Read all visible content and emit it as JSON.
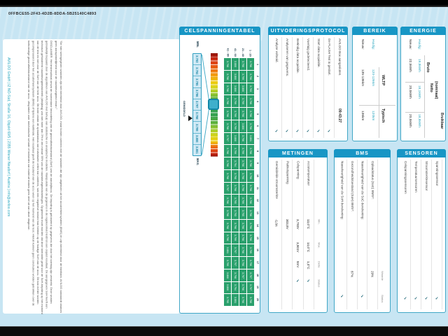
{
  "page": {
    "report_id": "0FFBCE55-2F43-4D2B-8DDA-5B25140C4893",
    "company_line": "AVILOO GmbH | IZ NÖ-Süd, Straße 16, Objekt 69/5 | 2355 Wiener Neudorf | Austria | info@aviloo.com",
    "bms_quote": "\"De hier weergegeven waarden zijn niet berekend door AVILOO, maar komen overeen met de waarden die zijn uitgelezen uit het accubeheersysteem (BMS) en zijn berekend door de fabrikant. AVILOO aanvaardt daarom geen aansprakelijkheid voor de nauwkeurigheid ervan.\"",
    "disclaimer": "DISCLAIMER: Het testresultaat omvat de momentane beoordeling van de gezondheidstoestand (SoH) van de aandrijfaccu. De bepaling is gebaseerd op gegevens die door het voertuig zijn verstrekt. Deze worden gebruikelijk bepaald door de algoritmen van AVILOO met behulp van statistische en analytische modellen. Manipulatie van de gegevens in de regeleenheid leidt tot een onjuist resultaat. De aangegeven SoH heeft een technisch gefundeerd nauwkeurigheidsbereik (afwijking) van niet meer dan 3% in ten minste 95% van de nauwkeurigheidsmetingen. Opgemerkt moet worden dat deze tolerantie geldt voor de SoH-bepaling op het moment van de test en niet voor de SoH van de hele accu. Dit komt omdat de oplaadstatus van individuele cellen kan variëren, wat een negatieve invloed kan hebben op de huidige SoH van de accu. Dit kan echter worden gecompenseerd door het accubeheersysteem (BMS) of tijdens een kalibratie. Het resultaat geeft de toestand van de accu weer op het moment van de test. Hieruit kunnen geen conclusies worden getrokken over de toekomstige gezondheidstoestand van de accu. Uitspraken over mechanische schade of invloeden van buitenaf maken geen deel uit van deze diagnose."
  },
  "colors": {
    "page_bg": "#c7e5f3",
    "header_bar_blue": "#1896c5",
    "panel_border_teal": "#41a7c6",
    "cell_green": "#2aa06c",
    "accent_teal": "#2ba7c0",
    "check_dark_teal": "#0d5c6e"
  },
  "cell_table": {
    "title": "CELSPANNINGENTABEL",
    "min_label": "MIN.",
    "max_label": "MAX.",
    "avg_label": "GEMIDDELD",
    "scale_values": [
      "3.793",
      "3.794",
      "3.795",
      "3.796",
      "3.797",
      "3.798",
      "3.799",
      "3.800",
      "3.801"
    ],
    "group_headers": [
      "61 - 80",
      "41 - 60",
      "21 - 40",
      "1 - 20"
    ],
    "row_numbers": [
      "1",
      "2",
      "3",
      "4",
      "5",
      "6",
      "7",
      "8",
      "9",
      "10",
      "11",
      "12",
      "13",
      "14",
      "15",
      "16",
      "17",
      "18",
      "19",
      "20"
    ],
    "rows": [
      [
        "3.796",
        "3.800",
        "3.796",
        "3.796"
      ],
      [
        "3.796",
        "3.800",
        "3.799",
        "3.796"
      ],
      [
        "3.796",
        "3.800",
        "3.800",
        "3.793"
      ],
      [
        "3.796",
        "3.799",
        "3.799",
        "3.796"
      ],
      [
        "3.796",
        "3.799",
        "3.796",
        "3.796"
      ],
      [
        "3.796",
        "3.799",
        "3.800",
        "3.796"
      ],
      [
        "3.797",
        "3.800",
        "3.796",
        "3.801"
      ],
      [
        "3.796",
        "3.799",
        "3.799",
        "3.798"
      ],
      [
        "3.796",
        "3.794",
        "3.796",
        "3.796"
      ],
      [
        "3.796",
        "3.798",
        "3.796",
        "3.796"
      ],
      [
        "3.797",
        "3.796",
        "3.796",
        "3.796"
      ],
      [
        "3.796",
        "3.795",
        "3.799",
        "3.796"
      ],
      [
        "3.796",
        "3.793",
        "3.795",
        "3.796"
      ],
      [
        "3.798",
        "3.796",
        "3.796",
        "3.796"
      ],
      [
        "3.796",
        "3.799",
        "3.796",
        "3.796"
      ],
      [
        "3.801",
        "3.797",
        "3.796",
        "3.799"
      ],
      [
        "3.799",
        "3.797",
        "3.796",
        "3.796"
      ],
      [
        "3.800",
        "3.798",
        "3.797",
        "3.797"
      ],
      [
        "3.800",
        "3.794",
        "3.796",
        "3.797"
      ],
      [
        "3.795",
        "3.801",
        "3.796",
        "3.796"
      ]
    ]
  },
  "protocol": {
    "title": "UITVOERINGSPROTOCOL",
    "steps": [
      {
        "label": "AVILOO Box aangesloten.",
        "result": "09:43:27"
      },
      {
        "label": "De FLASH Test is gestart.",
        "result": "✓"
      },
      {
        "label": "Start data acquisitie.",
        "result": "✓"
      },
      {
        "label": "Voertuig gedetecteerd.",
        "result": "✓"
      },
      {
        "label": "Beëindig data acquisitie.",
        "result": "✓"
      },
      {
        "label": "Analyseren van gegevens.",
        "result": "✓"
      },
      {
        "label": "Analyse voltooid.",
        "result": "✓"
      }
    ]
  },
  "range": {
    "title": "BEREIK",
    "columns": [
      "WLTP",
      "Typisch"
    ],
    "rows": [
      {
        "label": "Huidig:",
        "wltp": "120-126km",
        "typical": "120km"
      },
      {
        "label": "Nieuw:",
        "wltp": "135-136km",
        "typical": "136km"
      }
    ]
  },
  "energy": {
    "title": "ENERGIE",
    "columns": [
      "Bruto",
      "Netto (nominaal)",
      "Bruikbaar"
    ],
    "netto_l1": "Netto",
    "netto_l2": "(nominaal)",
    "rows": [
      {
        "label": "Huidig:",
        "bruto": "19,8kWh",
        "netto": "18,1kWh",
        "bruikbaar": "18,8kWh"
      },
      {
        "label": "Nieuw:",
        "bruto": "22,5kWh",
        "netto": "20,5kWh",
        "bruikbaar": "20,5kWh"
      }
    ]
  },
  "measurements": {
    "title": "METINGEN",
    "columns": [
      "Min.",
      "Max.",
      "Delta",
      "Status"
    ],
    "rows": [
      {
        "label": "Accutemperatuur",
        "min": "13,0°C",
        "max": "14,0°C",
        "delta": "1,0°C",
        "status": "✓"
      },
      {
        "label": "Celspanning",
        "min": "3,793V",
        "max": "3,801V",
        "delta": "8mV",
        "status": "✓"
      },
      {
        "label": "Pakketspanning",
        "min": "303,8V",
        "max": "",
        "delta": "",
        "status": ""
      },
      {
        "label": "Gemiddelde stroomsterkte",
        "min": "-1,0A",
        "max": "",
        "delta": "",
        "status": ""
      }
    ]
  },
  "bms": {
    "title": "BMS",
    "columns": [
      "Waarde",
      "Status"
    ],
    "rows": [
      {
        "label": "Oplaadstatus (SoC) BMS*:",
        "value": "29%",
        "status": ""
      },
      {
        "label": "Nauwkeurigheid van de SoC-berekening:",
        "value": "",
        "status": "✓"
      },
      {
        "label": "Gezondheidstoestand (SoH) BMS*:",
        "value": "87%",
        "status": ""
      },
      {
        "label": "Nauwkeurigheid van de SoH-berekening:",
        "value": "",
        "status": "✓"
      }
    ]
  },
  "sensors": {
    "title": "SENSOREN",
    "rows": [
      {
        "label": "Spanningssensor",
        "status": "✓"
      },
      {
        "label": "Stroomsterktesensor",
        "status": "✓"
      },
      {
        "label": "Temperatuursensoren",
        "status": "✓"
      },
      {
        "label": "Celspanningssensoren",
        "status": "✓"
      }
    ]
  }
}
